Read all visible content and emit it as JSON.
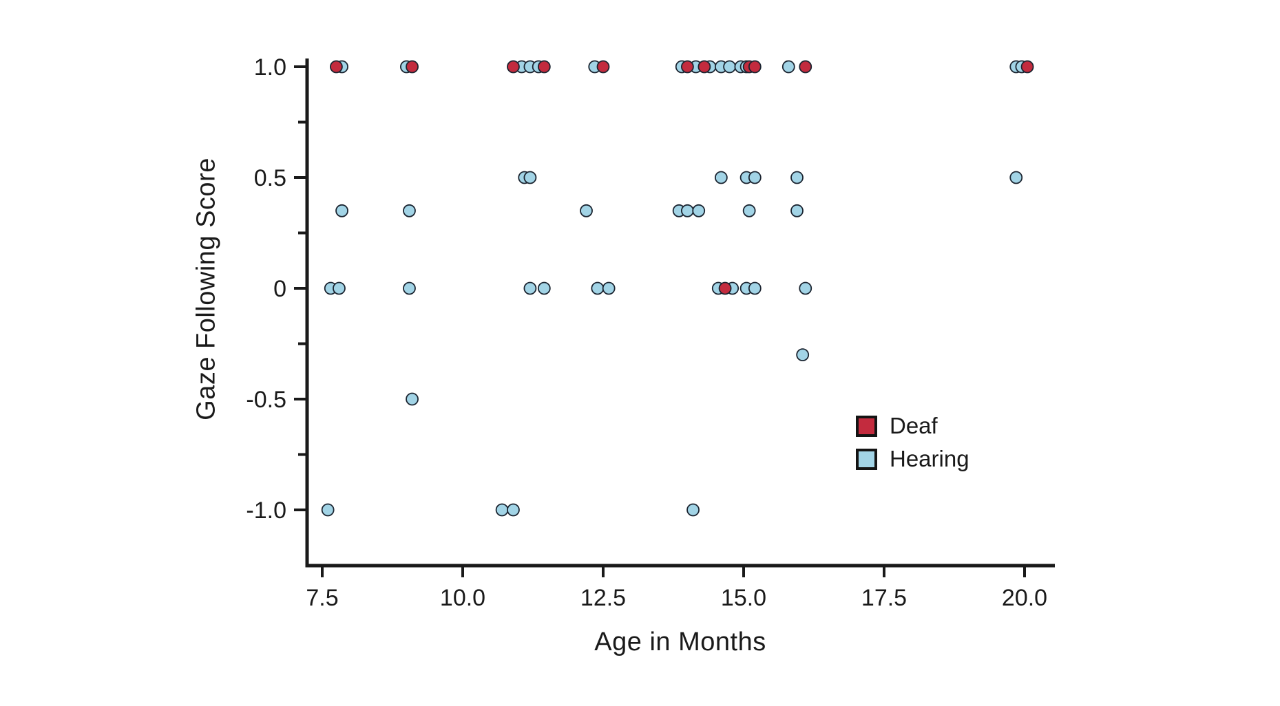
{
  "figure": {
    "xlabel": "Age in Months",
    "ylabel": "Gaze Following Score",
    "background": "#ffffff",
    "axis_color": "#1a1a1a",
    "legend": [
      {
        "label": "Deaf",
        "color": "#c32b3e"
      },
      {
        "label": "Hearing",
        "color": "#a2d4e6"
      }
    ]
  },
  "chart_data": {
    "type": "scatter",
    "title": "",
    "xlabel": "Age in Months",
    "ylabel": "Gaze Following Score",
    "xlim": [
      7.2,
      20.55
    ],
    "ylim": [
      -1.25,
      1.06
    ],
    "grid": false,
    "legend_position": "inside lower right",
    "xticks": [
      7.5,
      10.0,
      12.5,
      15.0,
      17.5,
      20.0
    ],
    "xtick_labels": [
      "7.5",
      "10.0",
      "12.5",
      "15.0",
      "17.5",
      "20.0"
    ],
    "yticks": [
      1.0,
      0.5,
      0,
      -0.5,
      -1.0
    ],
    "ytick_labels": [
      "1.0",
      "0.5",
      "0",
      "-0.5",
      "-1.0"
    ],
    "yticks_minor": [
      0.75,
      0.25,
      -0.25,
      -0.75
    ],
    "marker": {
      "shape": "circle",
      "radius_px": 8.5,
      "stroke": "#1b2430",
      "stroke_width": 1.8
    },
    "series": [
      {
        "name": "Deaf",
        "color": "#c32b3e",
        "points": [
          [
            7.75,
            1.0
          ],
          [
            9.1,
            1.0
          ],
          [
            10.9,
            1.0
          ],
          [
            11.45,
            1.0
          ],
          [
            12.5,
            1.0
          ],
          [
            14.0,
            1.0
          ],
          [
            14.3,
            1.0
          ],
          [
            15.1,
            1.0
          ],
          [
            15.2,
            1.0
          ],
          [
            16.1,
            1.0
          ],
          [
            20.05,
            1.0
          ],
          [
            14.67,
            0
          ]
        ]
      },
      {
        "name": "Hearing",
        "color": "#a2d4e6",
        "points": [
          [
            7.85,
            1.0
          ],
          [
            9.0,
            1.0
          ],
          [
            11.05,
            1.0
          ],
          [
            11.2,
            1.0
          ],
          [
            11.35,
            1.0
          ],
          [
            12.35,
            1.0
          ],
          [
            13.9,
            1.0
          ],
          [
            14.15,
            1.0
          ],
          [
            14.4,
            1.0
          ],
          [
            14.6,
            1.0
          ],
          [
            14.75,
            1.0
          ],
          [
            14.95,
            1.0
          ],
          [
            15.05,
            1.0
          ],
          [
            15.8,
            1.0
          ],
          [
            19.85,
            1.0
          ],
          [
            19.95,
            1.0
          ],
          [
            11.1,
            0.5
          ],
          [
            11.2,
            0.5
          ],
          [
            14.6,
            0.5
          ],
          [
            15.05,
            0.5
          ],
          [
            15.2,
            0.5
          ],
          [
            15.95,
            0.5
          ],
          [
            19.85,
            0.5
          ],
          [
            7.85,
            0.35
          ],
          [
            9.05,
            0.35
          ],
          [
            12.2,
            0.35
          ],
          [
            13.85,
            0.35
          ],
          [
            14.0,
            0.35
          ],
          [
            14.2,
            0.35
          ],
          [
            15.1,
            0.35
          ],
          [
            15.95,
            0.35
          ],
          [
            7.65,
            0
          ],
          [
            7.8,
            0
          ],
          [
            9.05,
            0
          ],
          [
            11.2,
            0
          ],
          [
            11.45,
            0
          ],
          [
            12.4,
            0
          ],
          [
            12.6,
            0
          ],
          [
            14.55,
            0
          ],
          [
            14.8,
            0
          ],
          [
            15.05,
            0
          ],
          [
            15.2,
            0
          ],
          [
            16.1,
            0
          ],
          [
            16.05,
            -0.3
          ],
          [
            9.1,
            -0.5
          ],
          [
            7.6,
            -1.0
          ],
          [
            10.7,
            -1.0
          ],
          [
            10.9,
            -1.0
          ],
          [
            14.1,
            -1.0
          ]
        ]
      }
    ]
  }
}
